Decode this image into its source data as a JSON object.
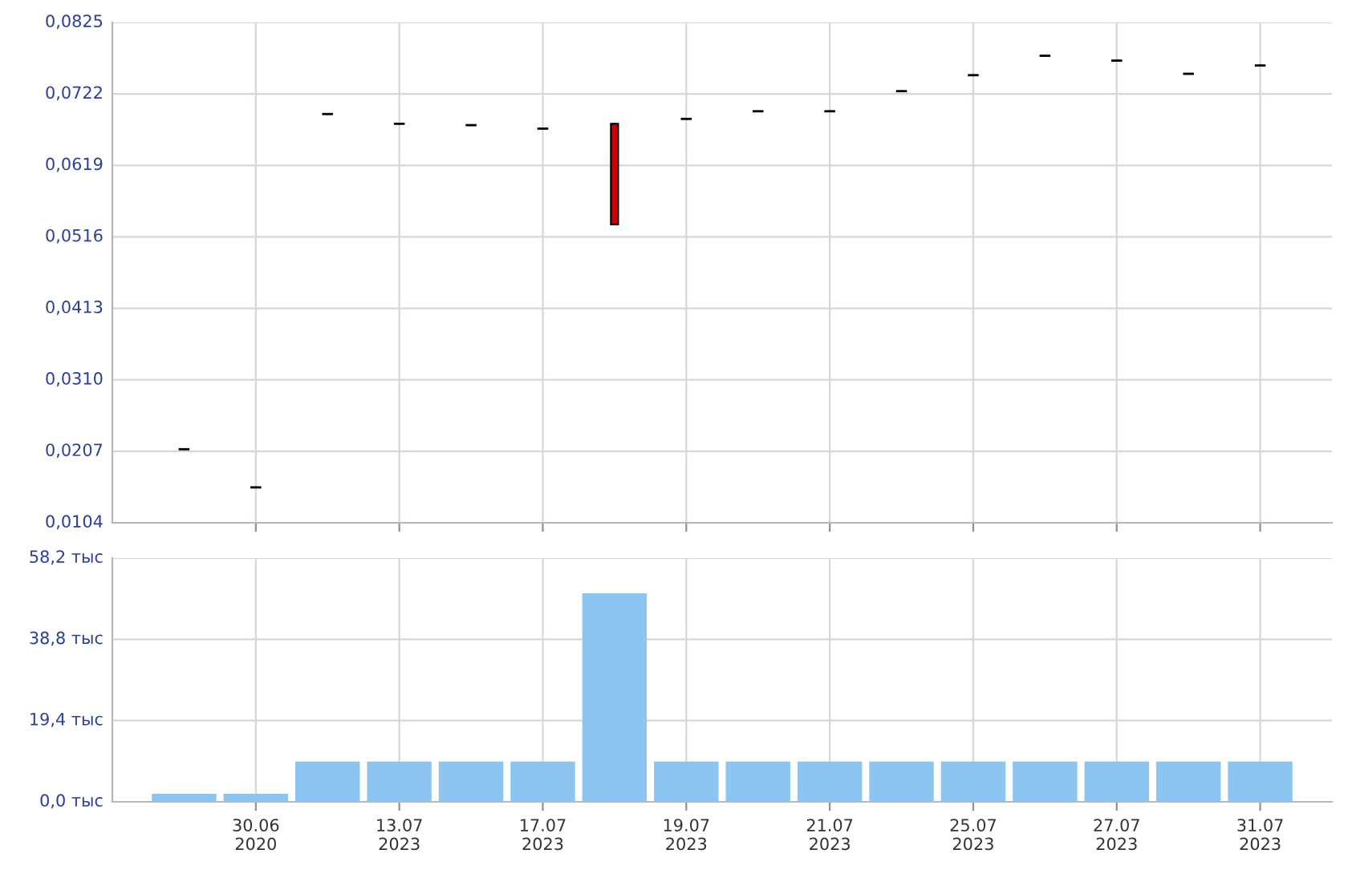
{
  "chart_data": [
    {
      "type": "candlestick",
      "categories": [
        null,
        null,
        null,
        null,
        null,
        null,
        null,
        null,
        null,
        null,
        null,
        null,
        null,
        null,
        null,
        null
      ],
      "ohlc": [
        [
          0.021,
          0.021,
          0.021,
          0.021
        ],
        [
          0.0155,
          0.0155,
          0.0155,
          0.0155
        ],
        [
          0.0693,
          0.0693,
          0.0693,
          0.0693
        ],
        [
          0.0679,
          0.0679,
          0.0679,
          0.0679
        ],
        [
          0.0677,
          0.0677,
          0.0677,
          0.0677
        ],
        [
          0.0672,
          0.0672,
          0.0672,
          0.0672
        ],
        [
          0.0679,
          0.0679,
          0.0534,
          0.0534
        ],
        [
          0.0686,
          0.0686,
          0.0686,
          0.0686
        ],
        [
          0.0697,
          0.0697,
          0.0697,
          0.0697
        ],
        [
          0.0697,
          0.0697,
          0.0697,
          0.0697
        ],
        [
          0.0726,
          0.0726,
          0.0726,
          0.0726
        ],
        [
          0.0749,
          0.0749,
          0.0749,
          0.0749
        ],
        [
          0.0777,
          0.0777,
          0.0777,
          0.0777
        ],
        [
          0.077,
          0.077,
          0.077,
          0.077
        ],
        [
          0.0751,
          0.0751,
          0.0751,
          0.0751
        ],
        [
          0.0763,
          0.0763,
          0.0763,
          0.0763
        ]
      ],
      "colors": [
        "#000000",
        "#000000",
        "#000000",
        "#000000",
        "#000000",
        "#000000",
        "#cc0000",
        "#000000",
        "#000000",
        "#000000",
        "#000000",
        "#000000",
        "#000000",
        "#000000",
        "#000000",
        "#000000"
      ],
      "ylim": [
        0.0104,
        0.0825
      ],
      "yticks": [
        {
          "value": 0.0104,
          "label": "0,0104"
        },
        {
          "value": 0.0207,
          "label": "0,0207"
        },
        {
          "value": 0.031,
          "label": "0,0310"
        },
        {
          "value": 0.0413,
          "label": "0,0413"
        },
        {
          "value": 0.0516,
          "label": "0,0516"
        },
        {
          "value": 0.0619,
          "label": "0,0619"
        },
        {
          "value": 0.0722,
          "label": "0,0722"
        },
        {
          "value": 0.0825,
          "label": "0,0825"
        }
      ],
      "tick_labels": "y",
      "grid": true
    },
    {
      "type": "bar",
      "categories": [
        null,
        "30.06\n2020",
        null,
        "13.07\n2023",
        null,
        "17.07\n2023",
        null,
        "19.07\n2023",
        null,
        "21.07\n2023",
        null,
        "25.07\n2023",
        null,
        "27.07\n2023",
        null,
        "31.07\n2023"
      ],
      "values": [
        1.9,
        1.9,
        9.6,
        9.6,
        9.6,
        9.6,
        49.8,
        9.6,
        9.6,
        9.6,
        9.6,
        9.6,
        9.6,
        9.6,
        9.6,
        9.6
      ],
      "color": "#8cc6f0",
      "ylim": [
        0,
        58.2
      ],
      "yticks": [
        {
          "value": 0,
          "label": "0,0 тыс"
        },
        {
          "value": 19.4,
          "label": "19,4 тыс"
        },
        {
          "value": 38.8,
          "label": "38,8 тыс"
        },
        {
          "value": 58.2,
          "label": "58,2 тыс"
        }
      ],
      "grid": true
    }
  ]
}
